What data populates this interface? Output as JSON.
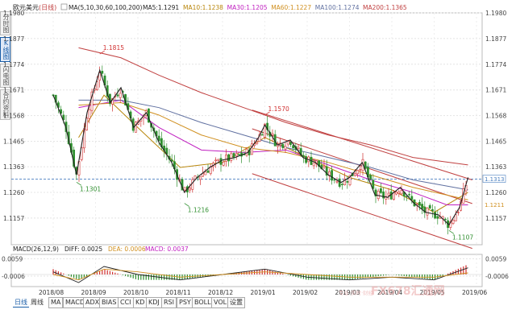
{
  "side_tabs": [
    "分时图",
    "K线图",
    "闪电图",
    "合约资料"
  ],
  "side_tab_active": 1,
  "header": {
    "symbol": "欧元美元",
    "period": "(日线)",
    "ma_label": "MA(5,10,30,60,100,200)",
    "readouts": [
      {
        "label": "MA5:",
        "value": "1.1291",
        "color": "#222222"
      },
      {
        "label": "MA10:",
        "value": "1.1238",
        "color": "#b8860b"
      },
      {
        "label": "MA30:",
        "value": "1.1205",
        "color": "#c020c0"
      },
      {
        "label": "MA60:",
        "value": "1.1227",
        "color": "#d09020"
      },
      {
        "label": "MA100:",
        "value": "1.1274",
        "color": "#6070a0"
      },
      {
        "label": "MA200:",
        "value": "1.1365",
        "color": "#c04040"
      }
    ]
  },
  "macd_header": {
    "label": "MACD(26,12,9)",
    "diff": "DIFF: 0.0025",
    "dea": "DEA: 0.0006",
    "macd": "MACD: 0.0037"
  },
  "price_tags": {
    "current": "1.1313",
    "ma": "1.1211"
  },
  "indicator_tabs": [
    "MA",
    "MACD",
    "ADX",
    "BIAS",
    "CCI",
    "KD",
    "KDJ",
    "RSI",
    "PSY",
    "BOLL",
    "VOL",
    "设置"
  ],
  "bottom_tabs": [
    "日线",
    "周线"
  ],
  "watermark": "FX678汇通网",
  "watermark_sub": "专业·实时·财经",
  "colors": {
    "up": "#d03030",
    "down": "#2f8f2f",
    "ma5": "#222222",
    "ma10": "#b8860b",
    "ma30": "#c020c0",
    "ma60": "#d09020",
    "ma100": "#6070a0",
    "ma200": "#c04040",
    "channel": "#c04040",
    "annotation_red": "#d03030",
    "annotation_green": "#2f8f2f"
  },
  "chart_data": {
    "type": "candlestick",
    "x_labels": [
      "2018/08",
      "2018/09",
      "2018/10",
      "2018/11",
      "2018/12",
      "2019/01",
      "2019/02",
      "2019/03",
      "2019/04",
      "2019/05",
      "2019/06"
    ],
    "ylim": [
      1.105,
      1.198
    ],
    "y_ticks": [
      1.198,
      1.1877,
      1.1774,
      1.1671,
      1.1568,
      1.1465,
      1.1363,
      1.126,
      1.1157
    ],
    "annotations": [
      {
        "label": "1.1815",
        "price": 1.1815,
        "month_pos": 1.1,
        "kind": "high"
      },
      {
        "label": "1.1301",
        "price": 1.1301,
        "month_pos": 0.55,
        "kind": "low"
      },
      {
        "label": "1.1216",
        "price": 1.1216,
        "month_pos": 3.1,
        "kind": "low"
      },
      {
        "label": "1.1570",
        "price": 1.157,
        "month_pos": 5.0,
        "kind": "high"
      },
      {
        "label": "1.1107",
        "price": 1.1107,
        "month_pos": 9.35,
        "kind": "low"
      }
    ],
    "reference_line": 1.1313,
    "close_path": [
      [
        0,
        1.165
      ],
      [
        0.3,
        1.152
      ],
      [
        0.55,
        1.133
      ],
      [
        0.8,
        1.158
      ],
      [
        1.1,
        1.175
      ],
      [
        1.35,
        1.162
      ],
      [
        1.6,
        1.168
      ],
      [
        1.9,
        1.152
      ],
      [
        2.2,
        1.158
      ],
      [
        2.5,
        1.146
      ],
      [
        2.8,
        1.138
      ],
      [
        3.1,
        1.126
      ],
      [
        3.4,
        1.132
      ],
      [
        3.7,
        1.136
      ],
      [
        4.0,
        1.139
      ],
      [
        4.3,
        1.14
      ],
      [
        4.6,
        1.142
      ],
      [
        4.85,
        1.148
      ],
      [
        5.0,
        1.153
      ],
      [
        5.3,
        1.145
      ],
      [
        5.6,
        1.147
      ],
      [
        5.9,
        1.14
      ],
      [
        6.2,
        1.138
      ],
      [
        6.5,
        1.133
      ],
      [
        6.8,
        1.13
      ],
      [
        7.0,
        1.132
      ],
      [
        7.3,
        1.138
      ],
      [
        7.6,
        1.125
      ],
      [
        7.9,
        1.124
      ],
      [
        8.2,
        1.128
      ],
      [
        8.5,
        1.122
      ],
      [
        8.8,
        1.118
      ],
      [
        9.1,
        1.117
      ],
      [
        9.35,
        1.113
      ],
      [
        9.6,
        1.12
      ],
      [
        9.8,
        1.132
      ]
    ],
    "channel": {
      "upper": [
        [
          4.7,
          1.1515
        ],
        [
          9.9,
          1.1215
        ]
      ],
      "lower": [
        [
          4.7,
          1.1335
        ],
        [
          9.9,
          1.1035
        ]
      ],
      "outer": [
        [
          4.7,
          1.159
        ],
        [
          9.9,
          1.131
        ]
      ]
    },
    "ma_series": [
      {
        "name": "MA10",
        "points": [
          [
            0.6,
            1.148
          ],
          [
            1.2,
            1.165
          ],
          [
            2.0,
            1.152
          ],
          [
            3.0,
            1.136
          ],
          [
            4.0,
            1.138
          ],
          [
            5.0,
            1.148
          ],
          [
            6.0,
            1.14
          ],
          [
            7.0,
            1.132
          ],
          [
            8.0,
            1.127
          ],
          [
            9.0,
            1.118
          ],
          [
            9.8,
            1.126
          ]
        ]
      },
      {
        "name": "MA30",
        "points": [
          [
            0.6,
            1.16
          ],
          [
            1.6,
            1.163
          ],
          [
            2.5,
            1.152
          ],
          [
            3.5,
            1.143
          ],
          [
            4.5,
            1.142
          ],
          [
            5.5,
            1.143
          ],
          [
            6.5,
            1.137
          ],
          [
            7.5,
            1.131
          ],
          [
            8.5,
            1.126
          ],
          [
            9.3,
            1.121
          ],
          [
            9.8,
            1.121
          ]
        ]
      },
      {
        "name": "MA60",
        "points": [
          [
            0.6,
            1.161
          ],
          [
            1.6,
            1.162
          ],
          [
            2.5,
            1.157
          ],
          [
            3.5,
            1.149
          ],
          [
            4.5,
            1.144
          ],
          [
            5.5,
            1.142
          ],
          [
            6.5,
            1.138
          ],
          [
            7.5,
            1.133
          ],
          [
            8.5,
            1.128
          ],
          [
            9.8,
            1.123
          ]
        ]
      },
      {
        "name": "MA100",
        "points": [
          [
            0.6,
            1.163
          ],
          [
            1.6,
            1.163
          ],
          [
            2.5,
            1.16
          ],
          [
            3.5,
            1.154
          ],
          [
            4.5,
            1.149
          ],
          [
            5.5,
            1.144
          ],
          [
            6.5,
            1.14
          ],
          [
            7.5,
            1.136
          ],
          [
            8.5,
            1.131
          ],
          [
            9.8,
            1.127
          ]
        ]
      },
      {
        "name": "MA200",
        "points": [
          [
            0.6,
            1.184
          ],
          [
            1.6,
            1.18
          ],
          [
            2.5,
            1.173
          ],
          [
            3.5,
            1.166
          ],
          [
            4.5,
            1.16
          ],
          [
            5.5,
            1.154
          ],
          [
            6.5,
            1.149
          ],
          [
            7.5,
            1.145
          ],
          [
            8.5,
            1.14
          ],
          [
            9.8,
            1.137
          ]
        ]
      }
    ],
    "macd_ticks": [
      0.0059,
      -0.0006
    ],
    "macd_lines": {
      "diff": [
        [
          0,
          0.001
        ],
        [
          0.6,
          -0.003
        ],
        [
          1.2,
          0.003
        ],
        [
          2.0,
          0.0
        ],
        [
          3.0,
          -0.002
        ],
        [
          4.0,
          0.0
        ],
        [
          5.0,
          0.002
        ],
        [
          6.0,
          -0.001
        ],
        [
          7.0,
          -0.002
        ],
        [
          8.0,
          -0.001
        ],
        [
          9.0,
          -0.002
        ],
        [
          9.8,
          0.0025
        ]
      ],
      "dea": [
        [
          0,
          0.0
        ],
        [
          0.6,
          -0.002
        ],
        [
          1.2,
          0.002
        ],
        [
          2.0,
          0.001
        ],
        [
          3.0,
          -0.001
        ],
        [
          4.0,
          0.0
        ],
        [
          5.0,
          0.001
        ],
        [
          6.0,
          0.0
        ],
        [
          7.0,
          -0.001
        ],
        [
          8.0,
          -0.001
        ],
        [
          9.0,
          -0.001
        ],
        [
          9.8,
          0.0006
        ]
      ]
    }
  }
}
